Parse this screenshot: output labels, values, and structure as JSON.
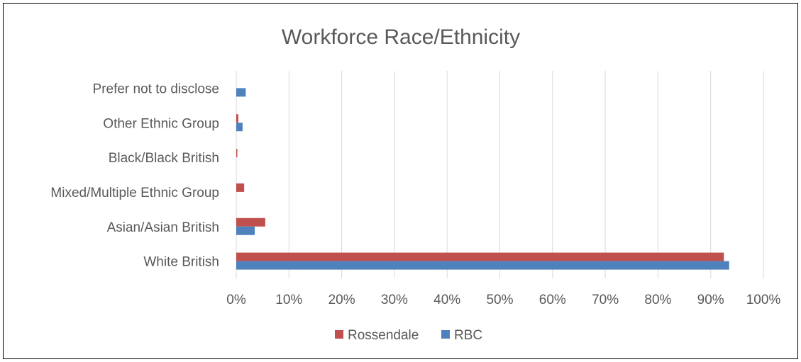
{
  "chart_data": {
    "type": "bar",
    "orientation": "horizontal",
    "title": "Workforce Race/Ethnicity",
    "categories": [
      "White British",
      "Asian/Asian British",
      "Mixed/Multiple Ethnic Group",
      "Black/Black British",
      "Other Ethnic Group",
      "Prefer not to disclose"
    ],
    "series": [
      {
        "name": "Rossendale",
        "color": "#C0504D",
        "values": [
          92.5,
          5.5,
          1.5,
          0.2,
          0.4,
          0
        ]
      },
      {
        "name": "RBC",
        "color": "#4F81BD",
        "values": [
          93.5,
          3.5,
          0,
          0,
          1.2,
          1.8
        ]
      }
    ],
    "xlim": [
      0,
      100
    ],
    "xticks": [
      0,
      10,
      20,
      30,
      40,
      50,
      60,
      70,
      80,
      90,
      100
    ],
    "tick_format": "percent",
    "grid": true,
    "legend_position": "bottom"
  }
}
